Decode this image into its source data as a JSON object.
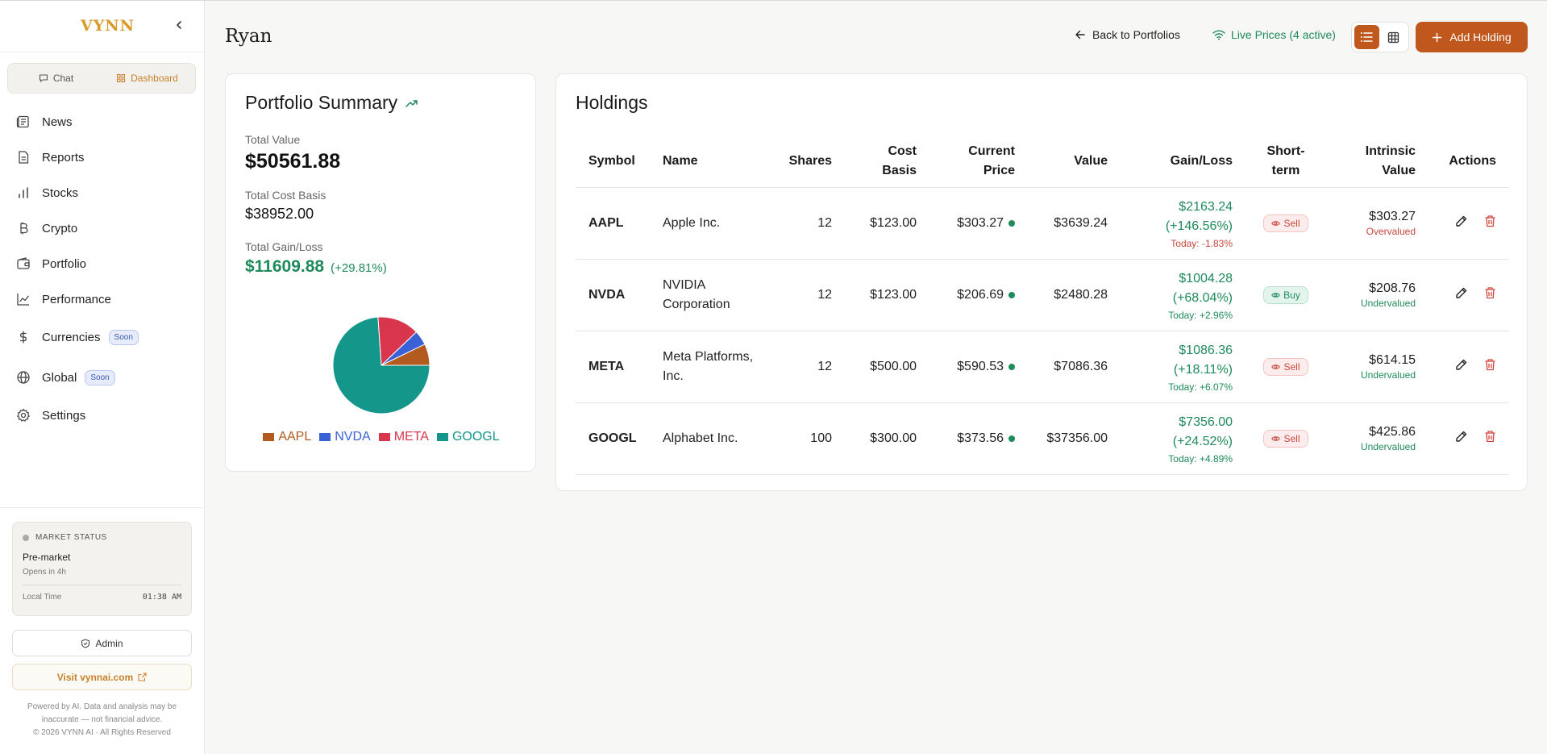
{
  "sidebar": {
    "logo": "VYNN",
    "segments": [
      {
        "label": "Chat",
        "icon": "chat-icon",
        "active": false
      },
      {
        "label": "Dashboard",
        "icon": "dashboard-icon",
        "active": true
      }
    ],
    "nav": [
      {
        "label": "News",
        "icon": "news-icon"
      },
      {
        "label": "Reports",
        "icon": "reports-icon"
      },
      {
        "label": "Stocks",
        "icon": "bar-chart-icon"
      },
      {
        "label": "Crypto",
        "icon": "bitcoin-icon"
      },
      {
        "label": "Portfolio",
        "icon": "wallet-icon"
      },
      {
        "label": "Performance",
        "icon": "line-chart-icon"
      },
      {
        "label": "Currencies",
        "icon": "dollar-icon",
        "badge": "Soon"
      },
      {
        "label": "Global",
        "icon": "globe-icon",
        "badge": "Soon"
      },
      {
        "label": "Settings",
        "icon": "gear-icon"
      }
    ],
    "market": {
      "heading": "MARKET STATUS",
      "status": "Pre-market",
      "opens": "Opens in 4h",
      "local_time_label": "Local Time",
      "local_time": "01:38 AM"
    },
    "admin_label": "Admin",
    "visit_label": "Visit vynnai.com",
    "disclaimer_line1": "Powered by AI. Data and analysis may be",
    "disclaimer_line2": "inaccurate — not financial advice.",
    "copyright": "© 2026 VYNN AI · All Rights Reserved"
  },
  "header": {
    "title": "Ryan",
    "back_label": "Back to Portfolios",
    "live_label": "Live Prices (4 active)",
    "add_label": "Add Holding"
  },
  "summary": {
    "title": "Portfolio Summary",
    "total_value_label": "Total Value",
    "total_value": "$50561.88",
    "cost_basis_label": "Total Cost Basis",
    "cost_basis": "$38952.00",
    "gain_label": "Total Gain/Loss",
    "gain_value": "$11609.88",
    "gain_pct": "(+29.81%)"
  },
  "chart_data": {
    "type": "pie",
    "categories": [
      "AAPL",
      "NVDA",
      "META",
      "GOOGL"
    ],
    "values": [
      3639.24,
      2480.28,
      7086.36,
      37356.0
    ],
    "colors": [
      "#b25a1f",
      "#3a62d6",
      "#d9364e",
      "#14968a"
    ],
    "legend": "bottom"
  },
  "holdings": {
    "title": "Holdings",
    "columns": {
      "symbol": "Symbol",
      "name": "Name",
      "shares": "Shares",
      "cost_1": "Cost",
      "cost_2": "Basis",
      "current_1": "Current",
      "current_2": "Price",
      "value": "Value",
      "gain": "Gain/Loss",
      "short_1": "Short-",
      "short_2": "term",
      "intrinsic_1": "Intrinsic",
      "intrinsic_2": "Value",
      "actions": "Actions"
    },
    "rows": [
      {
        "symbol": "AAPL",
        "name_1": "Apple Inc.",
        "name_2": "",
        "shares": "12",
        "cost": "$123.00",
        "current": "$303.27",
        "value": "$3639.24",
        "gain_1": "$2163.24",
        "gain_2": "(+146.56%)",
        "today": "Today: -1.83%",
        "today_dir": "neg",
        "signal": "Sell",
        "signal_type": "sell",
        "intrinsic": "$303.27",
        "valuation": "Overvalued",
        "valuation_dir": "neg"
      },
      {
        "symbol": "NVDA",
        "name_1": "NVIDIA",
        "name_2": "Corporation",
        "shares": "12",
        "cost": "$123.00",
        "current": "$206.69",
        "value": "$2480.28",
        "gain_1": "$1004.28",
        "gain_2": "(+68.04%)",
        "today": "Today: +2.96%",
        "today_dir": "pos",
        "signal": "Buy",
        "signal_type": "buy",
        "intrinsic": "$208.76",
        "valuation": "Undervalued",
        "valuation_dir": "pos"
      },
      {
        "symbol": "META",
        "name_1": "Meta Platforms,",
        "name_2": "Inc.",
        "shares": "12",
        "cost": "$500.00",
        "current": "$590.53",
        "value": "$7086.36",
        "gain_1": "$1086.36",
        "gain_2": "(+18.11%)",
        "today": "Today: +6.07%",
        "today_dir": "pos",
        "signal": "Sell",
        "signal_type": "sell",
        "intrinsic": "$614.15",
        "valuation": "Undervalued",
        "valuation_dir": "pos"
      },
      {
        "symbol": "GOOGL",
        "name_1": "Alphabet Inc.",
        "name_2": "",
        "shares": "100",
        "cost": "$300.00",
        "current": "$373.56",
        "value": "$37356.00",
        "gain_1": "$7356.00",
        "gain_2": "(+24.52%)",
        "today": "Today: +4.89%",
        "today_dir": "pos",
        "signal": "Sell",
        "signal_type": "sell",
        "intrinsic": "$425.86",
        "valuation": "Undervalued",
        "valuation_dir": "pos"
      }
    ]
  }
}
